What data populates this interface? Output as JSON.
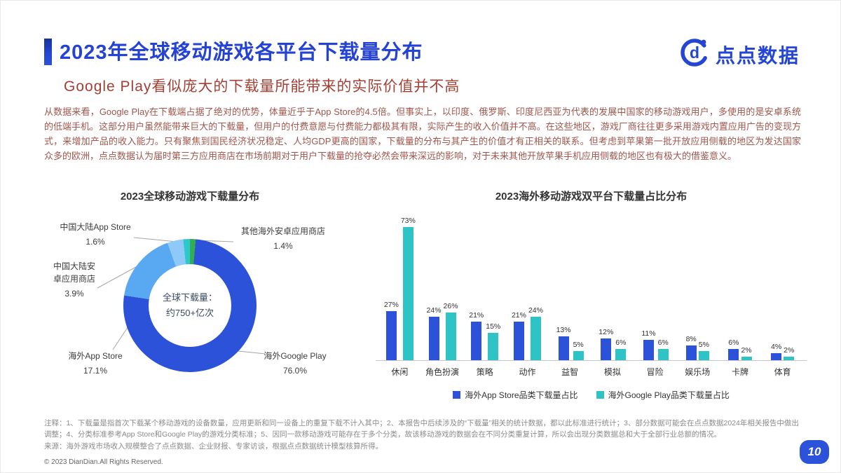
{
  "header": {
    "title": "2023年全球移动游戏各平台下载量分布",
    "logo_text": "点点数据",
    "subtitle": "Google Play看似庞大的下载量所能带来的实际价值并不高",
    "brand_blue": "#2443d4",
    "subtitle_red": "#a43f33"
  },
  "body_text": "从数据来看，Google Play在下载端占据了绝对的优势，体量近乎于App Store的4.5倍。但事实上，以印度、俄罗斯、印度尼西亚为代表的发展中国家的移动游戏用户，多使用的是安卓系统的低端手机。这部分用户虽然能带来巨大的下载量，但用户的付费意愿与付费能力都极其有限，实际产生的收入价值并不高。在这些地区，游戏厂商往往更多采用游戏内置应用广告的变现方式，来增加产品的收入能力。只有聚焦到国民经济状况稳定、人均GDP更高的国家，下载量的分布与其产生的价值才有正相关的联系。但考虑到苹果第一批开放应用侧载的地区为发达国家众多的欧洲，点点数据认为届时第三方应用商店在市场前期对于用户下载量的抢夺必然会带来深远的影响，对于未来其他开放苹果手机应用侧载的地区也有极大的借鉴意义。",
  "chart_data": [
    {
      "type": "pie",
      "title": "2023全球移动游戏下载量分布",
      "center_label": [
        "全球下载量：",
        "约750+亿次"
      ],
      "slices": [
        {
          "label": "其他海外安卓应用商店",
          "value": 1.4,
          "display": "1.4%",
          "color": "#34ad52"
        },
        {
          "label": "海外Google Play",
          "value": 76.0,
          "display": "76.0%",
          "color": "#2b52d9"
        },
        {
          "label": "海外App Store",
          "value": 17.1,
          "display": "17.1%",
          "color": "#58a9f1"
        },
        {
          "label": "中国大陆安卓应用商店",
          "value": 3.9,
          "display": "3.9%",
          "color": "#8ec9f7"
        },
        {
          "label": "中国大陆App Store",
          "value": 1.6,
          "display": "1.6%",
          "color": "#2cc8cc"
        }
      ]
    },
    {
      "type": "bar",
      "title": "2023海外移动游戏双平台下载量占比分布",
      "categories": [
        "休闲",
        "角色扮演",
        "策略",
        "动作",
        "益智",
        "模拟",
        "冒险",
        "娱乐场",
        "卡牌",
        "体育"
      ],
      "series": [
        {
          "name": "海外App Store品类下载量占比",
          "color": "#2b52d9",
          "values": [
            27,
            24,
            21,
            21,
            13,
            12,
            11,
            8,
            6,
            4
          ]
        },
        {
          "name": "海外Google Play品类下载量占比",
          "color": "#2ec4c6",
          "values": [
            73,
            26,
            15,
            24,
            5,
            6,
            6,
            5,
            2,
            2
          ]
        }
      ],
      "ylim": [
        0,
        80
      ],
      "legend_position": "bottom",
      "grid": false
    }
  ],
  "footer": {
    "notes": "注释：1、下载量是指首次下载某个移动游戏的设备数量，应用更新和同一设备上的重复下载不计入其中；2、本报告中后续涉及的“下载量”相关的统计数据，都以此标准进行统计；3、部分数据可能会在点点数据2024年相关报告中做出调整；4、分类标准参考App Store和Google Play的游戏分类标准；5、因同一款移动游戏可能存在于多个分类，故该移动游戏的数据会在不同分类重复计算，所以会出现分类数据总和大于全部行业总额的情况。",
    "source": "来源：海外游戏市场收入规模整合了点点数据、企业财报、专家访谈，根据点点数据统计模型核算所得。",
    "copyright": "© 2023 DianDian.All Rights Reserved.",
    "page_number": "10"
  }
}
